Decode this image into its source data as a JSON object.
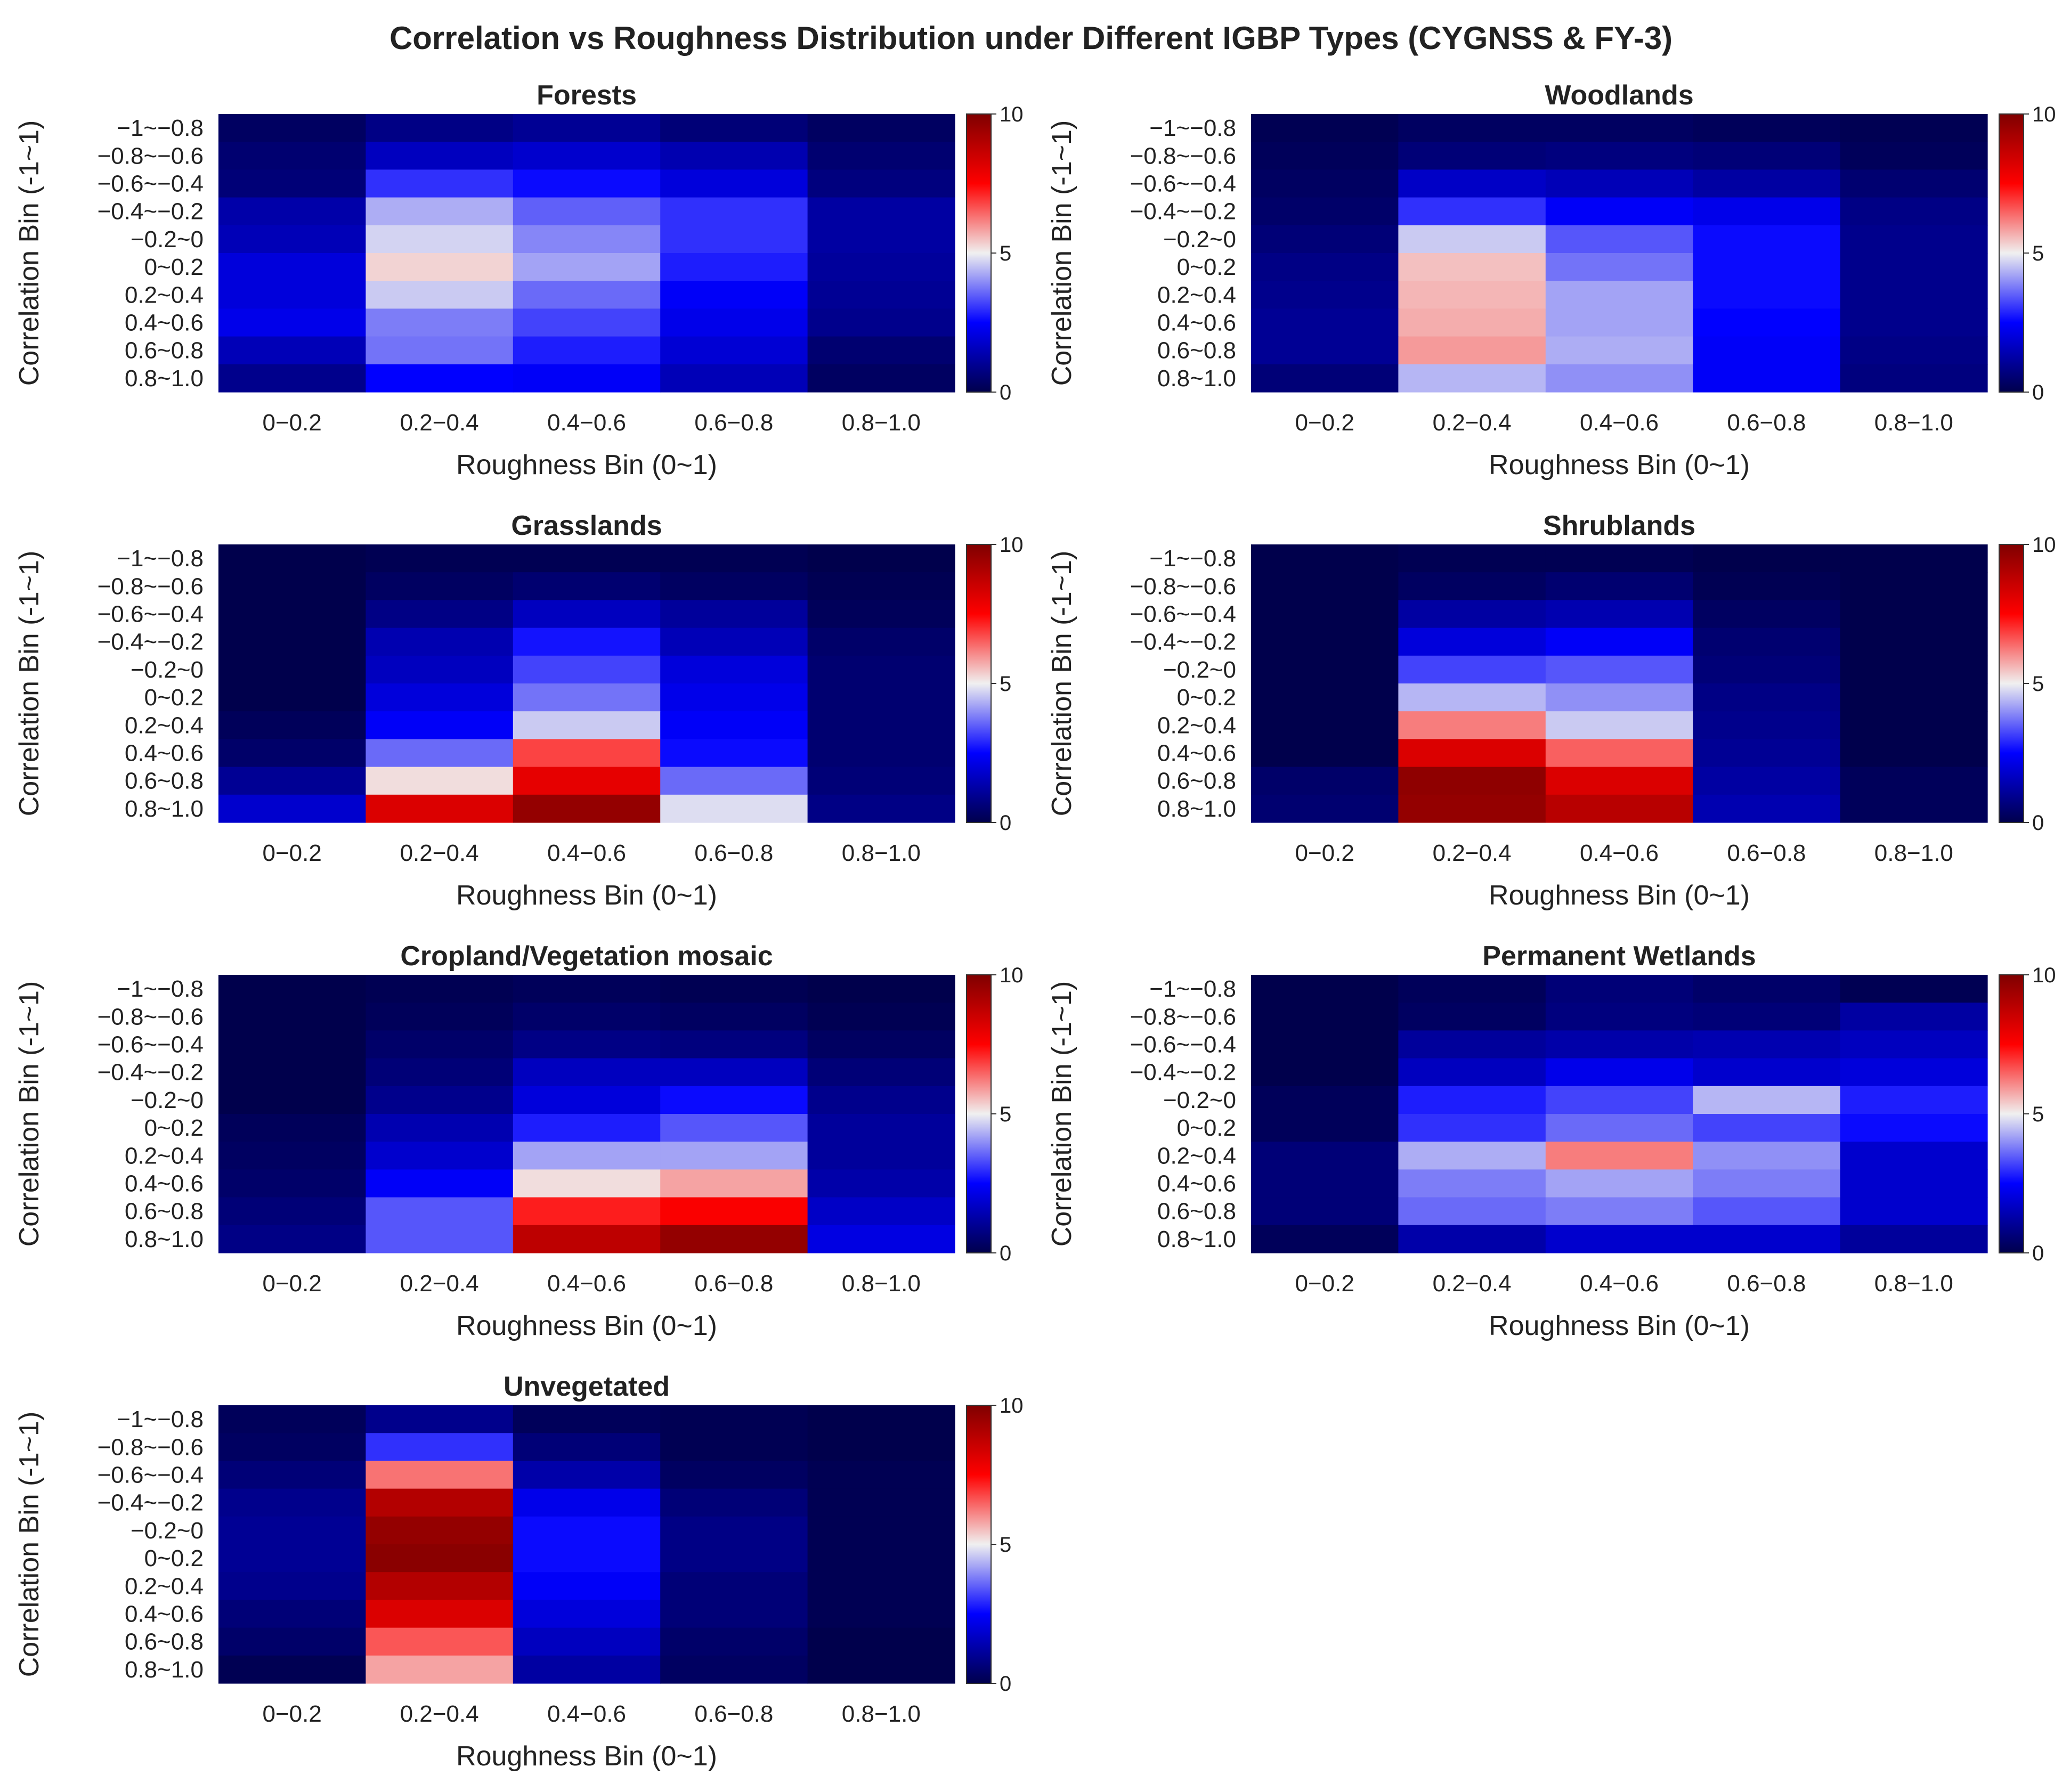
{
  "chart_data": {
    "type": "heatmap",
    "title": "Correlation vs Roughness Distribution under Different IGBP Types (CYGNSS & FY-3)",
    "xlabel": "Roughness Bin (0~1)",
    "ylabel": "Correlation Bin (-1~1)",
    "x_categories": [
      "0−0.2",
      "0.2−0.4",
      "0.4−0.6",
      "0.6−0.8",
      "0.8−1.0"
    ],
    "y_categories": [
      "−1~−0.8",
      "−0.8~−0.6",
      "−0.6~−0.4",
      "−0.4~−0.2",
      "−0.2~0",
      "0~0.2",
      "0.2~0.4",
      "0.4~0.6",
      "0.6~0.8",
      "0.8~1.0"
    ],
    "colorbar": {
      "range": [
        0,
        10
      ],
      "ticks": [
        "0",
        "5",
        "10"
      ],
      "colormap": "seismic"
    },
    "panels": [
      {
        "title": "Forests",
        "values": [
          [
            0.3,
            0.8,
            1.0,
            0.6,
            0.3
          ],
          [
            0.5,
            1.6,
            1.8,
            1.4,
            0.5
          ],
          [
            0.6,
            3.0,
            2.6,
            2.0,
            0.7
          ],
          [
            1.3,
            4.3,
            3.5,
            3.0,
            1.2
          ],
          [
            1.5,
            4.7,
            3.9,
            3.0,
            1.2
          ],
          [
            2.0,
            5.3,
            4.2,
            2.8,
            1.1
          ],
          [
            2.0,
            4.6,
            3.6,
            2.4,
            1.0
          ],
          [
            2.2,
            3.8,
            3.2,
            2.2,
            0.9
          ],
          [
            1.5,
            3.7,
            2.8,
            1.9,
            0.5
          ],
          [
            0.9,
            2.5,
            2.4,
            1.5,
            0.3
          ]
        ]
      },
      {
        "title": "Woodlands",
        "values": [
          [
            0.1,
            0.3,
            0.3,
            0.2,
            0.1
          ],
          [
            0.2,
            0.6,
            0.7,
            0.6,
            0.2
          ],
          [
            0.3,
            1.7,
            1.5,
            1.2,
            0.5
          ],
          [
            0.4,
            3.0,
            2.4,
            2.2,
            0.8
          ],
          [
            0.6,
            4.6,
            3.4,
            2.6,
            0.9
          ],
          [
            0.8,
            5.5,
            3.7,
            2.6,
            0.9
          ],
          [
            0.9,
            5.6,
            4.2,
            2.6,
            0.9
          ],
          [
            1.0,
            5.7,
            4.2,
            2.5,
            0.9
          ],
          [
            1.0,
            5.9,
            4.3,
            2.4,
            0.8
          ],
          [
            0.6,
            4.4,
            4.0,
            2.4,
            0.7
          ]
        ]
      },
      {
        "title": "Grasslands",
        "values": [
          [
            0.0,
            0.1,
            0.1,
            0.1,
            0.0
          ],
          [
            0.0,
            0.3,
            0.5,
            0.3,
            0.1
          ],
          [
            0.0,
            0.8,
            1.6,
            1.1,
            0.2
          ],
          [
            0.0,
            1.4,
            2.7,
            1.5,
            0.4
          ],
          [
            0.0,
            1.6,
            3.2,
            2.0,
            0.5
          ],
          [
            0.0,
            2.0,
            3.7,
            2.2,
            0.5
          ],
          [
            0.2,
            2.4,
            4.6,
            2.4,
            0.5
          ],
          [
            0.4,
            3.6,
            6.8,
            2.6,
            0.5
          ],
          [
            1.0,
            5.2,
            8.0,
            3.6,
            0.6
          ],
          [
            1.8,
            8.2,
            9.6,
            4.8,
            0.8
          ]
        ]
      },
      {
        "title": "Shrublands",
        "values": [
          [
            0.0,
            0.1,
            0.1,
            0.0,
            0.0
          ],
          [
            0.0,
            0.3,
            0.5,
            0.1,
            0.0
          ],
          [
            0.0,
            1.2,
            1.4,
            0.3,
            0.0
          ],
          [
            0.0,
            2.0,
            2.4,
            0.5,
            0.0
          ],
          [
            0.0,
            3.2,
            3.4,
            0.6,
            0.0
          ],
          [
            0.0,
            4.4,
            4.0,
            0.8,
            0.0
          ],
          [
            0.0,
            6.2,
            4.6,
            0.9,
            0.0
          ],
          [
            0.0,
            8.2,
            6.5,
            1.0,
            0.0
          ],
          [
            0.4,
            9.7,
            8.2,
            1.2,
            0.2
          ],
          [
            0.5,
            9.6,
            8.9,
            1.4,
            0.2
          ]
        ]
      },
      {
        "title": "Cropland/Vegetation mosaic",
        "values": [
          [
            0.0,
            0.1,
            0.2,
            0.1,
            0.0
          ],
          [
            0.0,
            0.2,
            0.4,
            0.3,
            0.1
          ],
          [
            0.0,
            0.4,
            0.8,
            0.7,
            0.3
          ],
          [
            0.0,
            0.6,
            1.6,
            1.6,
            0.6
          ],
          [
            0.0,
            0.9,
            2.0,
            2.6,
            0.9
          ],
          [
            0.2,
            1.4,
            2.8,
            3.4,
            1.1
          ],
          [
            0.3,
            1.8,
            4.2,
            4.2,
            1.1
          ],
          [
            0.4,
            2.4,
            5.2,
            5.8,
            1.3
          ],
          [
            0.6,
            3.4,
            7.2,
            7.6,
            1.7
          ],
          [
            0.8,
            3.4,
            8.8,
            9.6,
            2.1
          ]
        ]
      },
      {
        "title": "Permanent Wetlands",
        "values": [
          [
            0.0,
            0.2,
            0.6,
            0.4,
            0.1
          ],
          [
            0.0,
            0.3,
            0.7,
            0.6,
            1.2
          ],
          [
            0.0,
            1.1,
            1.3,
            1.4,
            1.6
          ],
          [
            0.0,
            1.6,
            2.2,
            1.8,
            2.0
          ],
          [
            0.2,
            2.8,
            3.2,
            4.4,
            2.8
          ],
          [
            0.2,
            3.0,
            3.6,
            3.2,
            2.6
          ],
          [
            0.6,
            4.3,
            6.2,
            4.0,
            1.8
          ],
          [
            0.6,
            3.8,
            4.2,
            3.8,
            1.8
          ],
          [
            0.6,
            3.6,
            3.8,
            3.4,
            1.8
          ],
          [
            0.2,
            1.3,
            1.8,
            1.8,
            1.1
          ]
        ]
      },
      {
        "title": "Unvegetated",
        "values": [
          [
            0.2,
            0.9,
            0.2,
            0.1,
            0.0
          ],
          [
            0.3,
            3.0,
            0.6,
            0.1,
            0.0
          ],
          [
            0.6,
            6.3,
            1.3,
            0.3,
            0.1
          ],
          [
            0.9,
            9.0,
            2.2,
            0.6,
            0.1
          ],
          [
            1.0,
            9.6,
            2.6,
            0.8,
            0.1
          ],
          [
            1.0,
            9.8,
            2.6,
            0.8,
            0.1
          ],
          [
            0.9,
            9.0,
            2.4,
            0.6,
            0.1
          ],
          [
            0.6,
            8.2,
            2.0,
            0.6,
            0.1
          ],
          [
            0.4,
            6.6,
            1.6,
            0.4,
            0.0
          ],
          [
            0.1,
            5.8,
            1.2,
            0.3,
            0.0
          ]
        ]
      }
    ]
  }
}
